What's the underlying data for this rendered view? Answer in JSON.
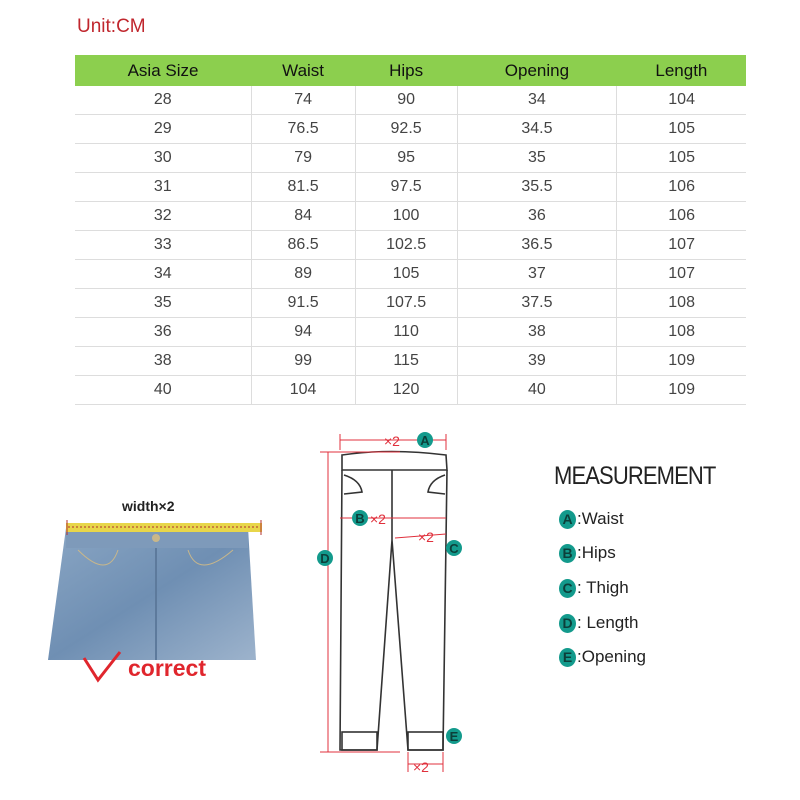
{
  "unit_label": "Unit:CM",
  "table": {
    "headers": [
      "Asia Size",
      "Waist",
      "Hips",
      "Opening",
      "Length"
    ],
    "rows": [
      [
        "28",
        "74",
        "90",
        "34",
        "104"
      ],
      [
        "29",
        "76.5",
        "92.5",
        "34.5",
        "105"
      ],
      [
        "30",
        "79",
        "95",
        "35",
        "105"
      ],
      [
        "31",
        "81.5",
        "97.5",
        "35.5",
        "106"
      ],
      [
        "32",
        "84",
        "100",
        "36",
        "106"
      ],
      [
        "33",
        "86.5",
        "102.5",
        "36.5",
        "107"
      ],
      [
        "34",
        "89",
        "105",
        "37",
        "107"
      ],
      [
        "35",
        "91.5",
        "107.5",
        "37.5",
        "108"
      ],
      [
        "36",
        "94",
        "110",
        "38",
        "108"
      ],
      [
        "38",
        "99",
        "115",
        "39",
        "109"
      ],
      [
        "40",
        "104",
        "120",
        "40",
        "109"
      ]
    ],
    "header_color": "#8ccf4e"
  },
  "photo": {
    "width_label": "width×2",
    "correct_label": "correct"
  },
  "diagram": {
    "x2": "×2",
    "markers": [
      "A",
      "B",
      "C",
      "D",
      "E"
    ]
  },
  "measurement": {
    "title": "MEASUREMENT",
    "items": [
      {
        "letter": "A",
        "label": ":Waist"
      },
      {
        "letter": "B",
        "label": ":Hips"
      },
      {
        "letter": "C",
        "label": ": Thigh"
      },
      {
        "letter": "D",
        "label": ": Length"
      },
      {
        "letter": "E",
        "label": ":Opening"
      }
    ],
    "badge_color": "#139a8c"
  }
}
